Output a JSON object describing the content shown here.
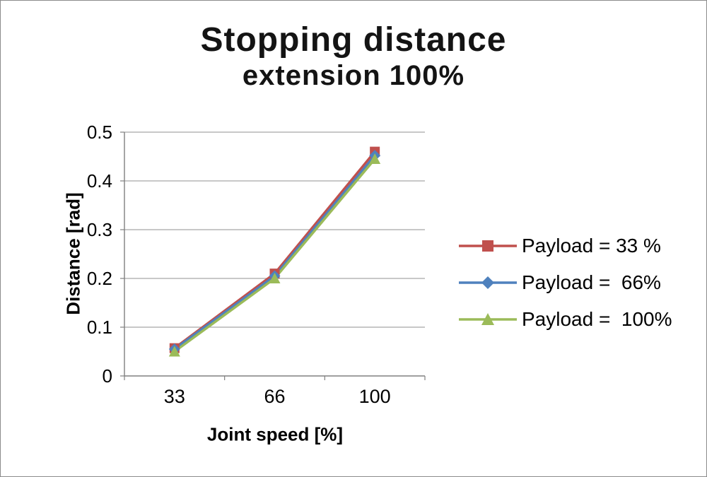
{
  "title_line1": "Stopping distance",
  "title_line2": "extension 100%",
  "chart_data": {
    "type": "line",
    "title": "Stopping distance extension 100%",
    "xlabel": "Joint speed [%]",
    "ylabel": "Distance [rad]",
    "categories": [
      "33",
      "66",
      "100"
    ],
    "ylim": [
      0,
      0.5
    ],
    "ytick_step": 0.1,
    "ytick_labels": [
      "0",
      "0.1",
      "0.2",
      "0.3",
      "0.4",
      "0.5"
    ],
    "grid": true,
    "legend_position": "right",
    "colors": {
      "gridline": "#A6A6A6",
      "axis": "#808080",
      "text": "#000000"
    },
    "series": [
      {
        "name": "Payload = 33 %",
        "color": "#C0504D",
        "marker": "square",
        "values": [
          0.057,
          0.21,
          0.46
        ]
      },
      {
        "name": "Payload =  66%",
        "color": "#4F81BD",
        "marker": "diamond",
        "values": [
          0.055,
          0.205,
          0.452
        ]
      },
      {
        "name": "Payload =  100%",
        "color": "#9BBB59",
        "marker": "triangle",
        "values": [
          0.05,
          0.2,
          0.445
        ]
      }
    ]
  }
}
